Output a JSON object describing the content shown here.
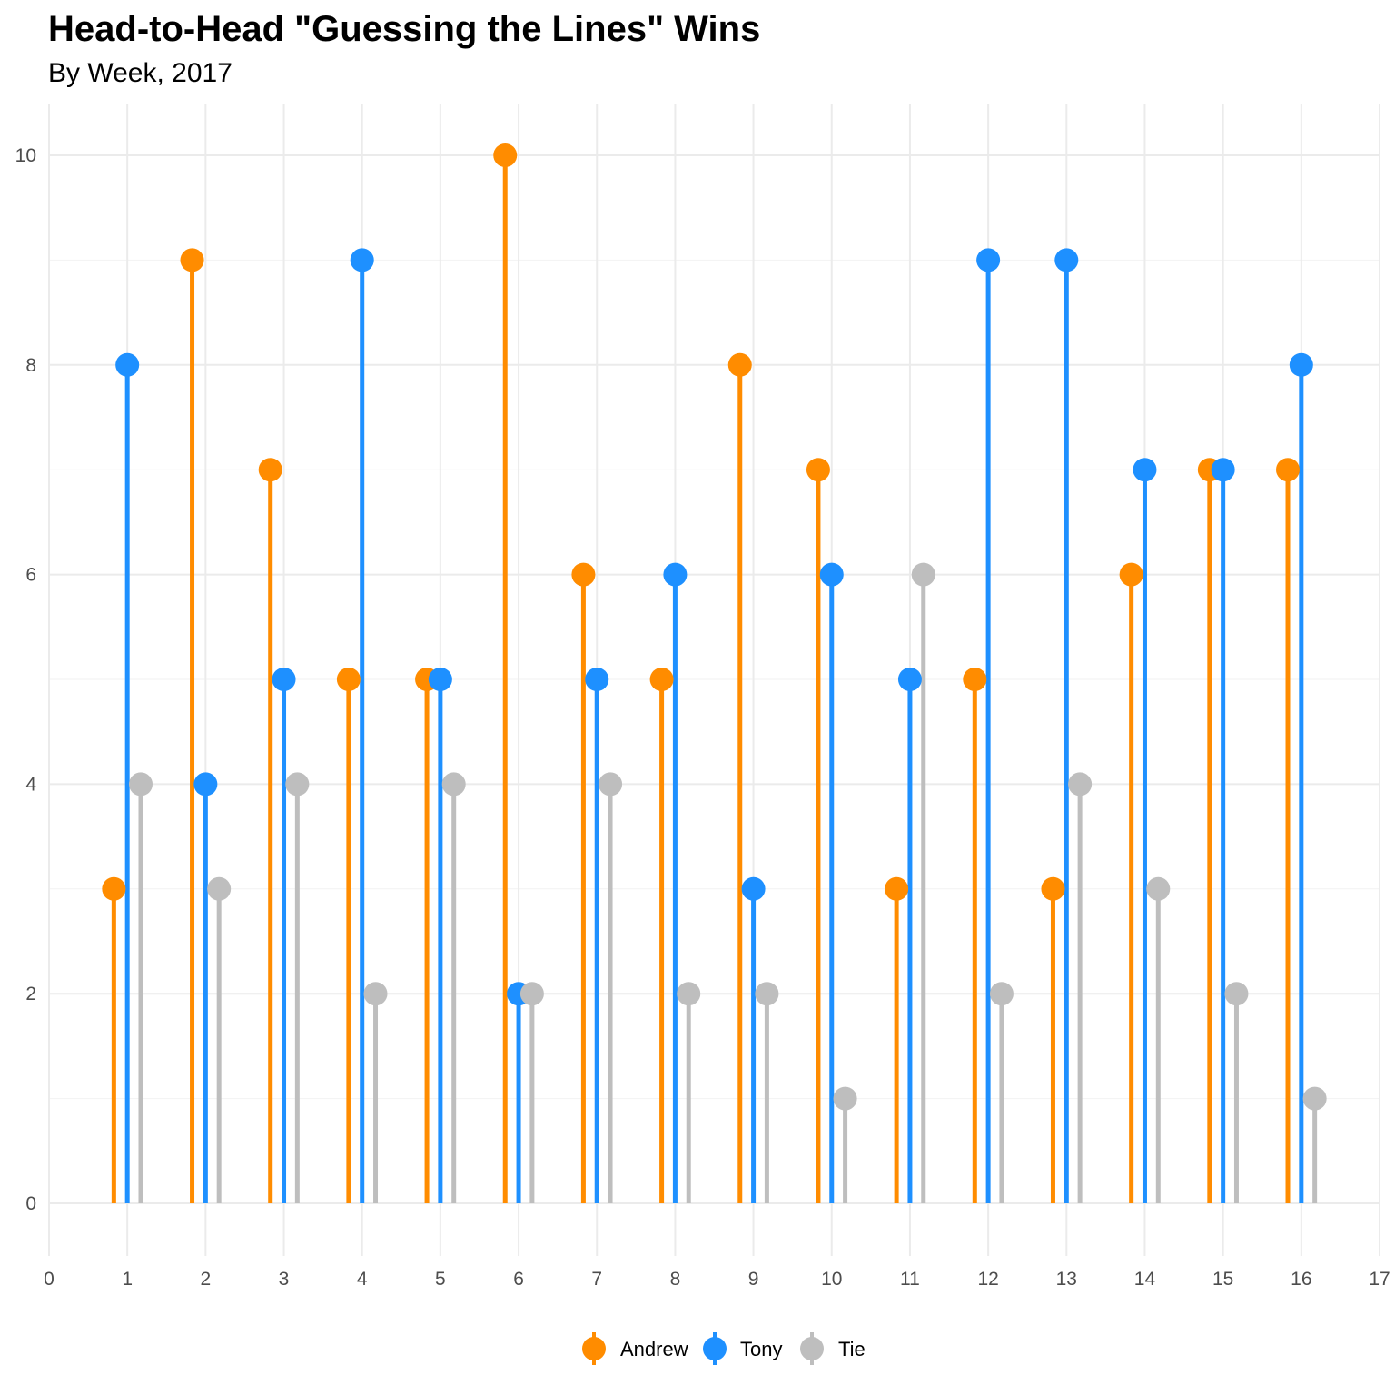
{
  "chart_data": {
    "type": "lollipop",
    "title": "Head-to-Head \"Guessing the Lines\" Wins",
    "subtitle": "By Week, 2017",
    "xlabel": "",
    "ylabel": "",
    "x": [
      1,
      2,
      3,
      4,
      5,
      6,
      7,
      8,
      9,
      10,
      11,
      12,
      13,
      14,
      15,
      16
    ],
    "series": [
      {
        "name": "Andrew",
        "color": "#ff8c00",
        "values": [
          3,
          9,
          7,
          5,
          5,
          10,
          6,
          5,
          8,
          7,
          3,
          5,
          3,
          6,
          7,
          7
        ]
      },
      {
        "name": "Tony",
        "color": "#1e90ff",
        "values": [
          8,
          4,
          5,
          9,
          5,
          2,
          5,
          6,
          3,
          6,
          5,
          9,
          9,
          7,
          7,
          8
        ]
      },
      {
        "name": "Tie",
        "color": "#bebebe",
        "values": [
          4,
          3,
          4,
          2,
          4,
          2,
          4,
          2,
          2,
          1,
          6,
          2,
          4,
          3,
          2,
          1
        ]
      }
    ],
    "xlim": [
      0,
      17
    ],
    "ylim": [
      0,
      10
    ],
    "x_ticks": [
      "0",
      "1",
      "2",
      "3",
      "4",
      "5",
      "6",
      "7",
      "8",
      "9",
      "10",
      "11",
      "12",
      "13",
      "14",
      "15",
      "16",
      "17"
    ],
    "y_ticks": [
      "0",
      "2",
      "4",
      "6",
      "8",
      "10"
    ],
    "grid": true,
    "legend_position": "bottom"
  }
}
